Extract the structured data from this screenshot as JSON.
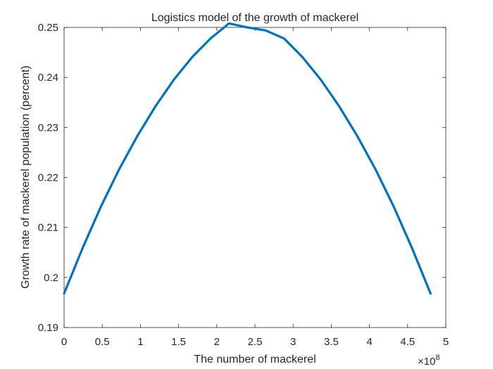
{
  "chart_data": {
    "type": "line",
    "title": "Logistics model of the growth of mackerel",
    "xlabel": "The number of mackerel",
    "ylabel": "Growth rate of mackerel population (percent)",
    "x_exponent_prefix": "×10",
    "x_exponent_power": "8",
    "xlim": [
      0,
      500000000
    ],
    "ylim": [
      0.19,
      0.25
    ],
    "x_ticks": [
      0,
      50000000,
      100000000,
      150000000,
      200000000,
      250000000,
      300000000,
      350000000,
      400000000,
      450000000,
      500000000
    ],
    "x_tick_labels": [
      "0",
      "0.5",
      "1",
      "1.5",
      "2",
      "2.5",
      "3",
      "3.5",
      "4",
      "4.5",
      "5"
    ],
    "y_ticks": [
      0.19,
      0.2,
      0.21,
      0.22,
      0.23,
      0.24,
      0.25
    ],
    "y_tick_labels": [
      "0.19",
      "0.2",
      "0.21",
      "0.22",
      "0.23",
      "0.24",
      "0.25"
    ],
    "grid": false,
    "series": [
      {
        "color": "#0072BD",
        "x": [
          0,
          24000000,
          48000000,
          72000000,
          96000000,
          120000000,
          144000000,
          168000000,
          192000000,
          216000000,
          240000000,
          264000000,
          288000000,
          312000000,
          336000000,
          360000000,
          384000000,
          408000000,
          432000000,
          456000000,
          480000000
        ],
        "y": [
          0.1968,
          0.2058,
          0.2141,
          0.2216,
          0.2283,
          0.2343,
          0.2396,
          0.2441,
          0.2478,
          0.2508,
          0.25,
          0.2494,
          0.2478,
          0.2441,
          0.2396,
          0.2343,
          0.2283,
          0.2216,
          0.2141,
          0.2058,
          0.1968
        ]
      }
    ]
  }
}
